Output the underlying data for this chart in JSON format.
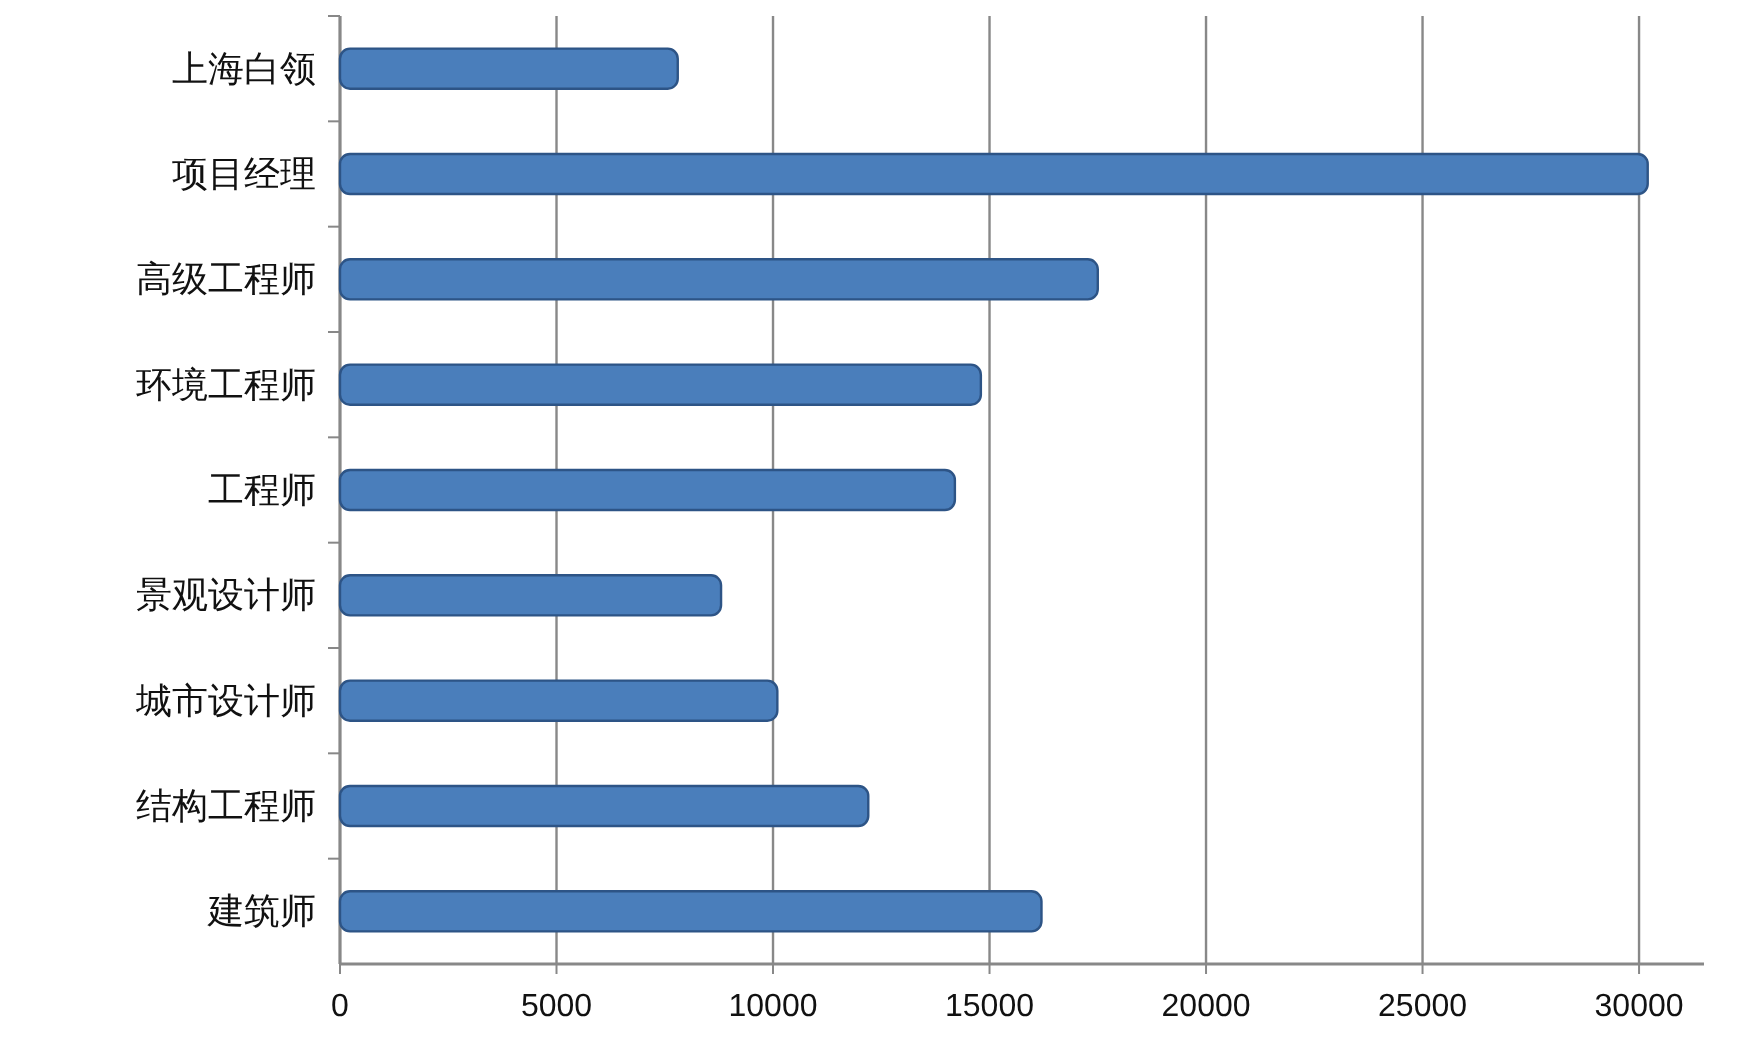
{
  "chart_data": {
    "type": "bar",
    "orientation": "horizontal",
    "categories": [
      "上海白领",
      "项目经理",
      "高级工程师",
      "环境工程师",
      "工程师",
      "景观设计师",
      "城市设计师",
      "结构工程师",
      "建筑师"
    ],
    "values": [
      7800,
      30200,
      17500,
      14800,
      14200,
      8800,
      10100,
      12200,
      16200
    ],
    "color": "#4a7ebb",
    "xlim": [
      0,
      31500
    ],
    "xticks": [
      0,
      5000,
      10000,
      15000,
      20000,
      25000,
      30000
    ],
    "grid": "x"
  }
}
